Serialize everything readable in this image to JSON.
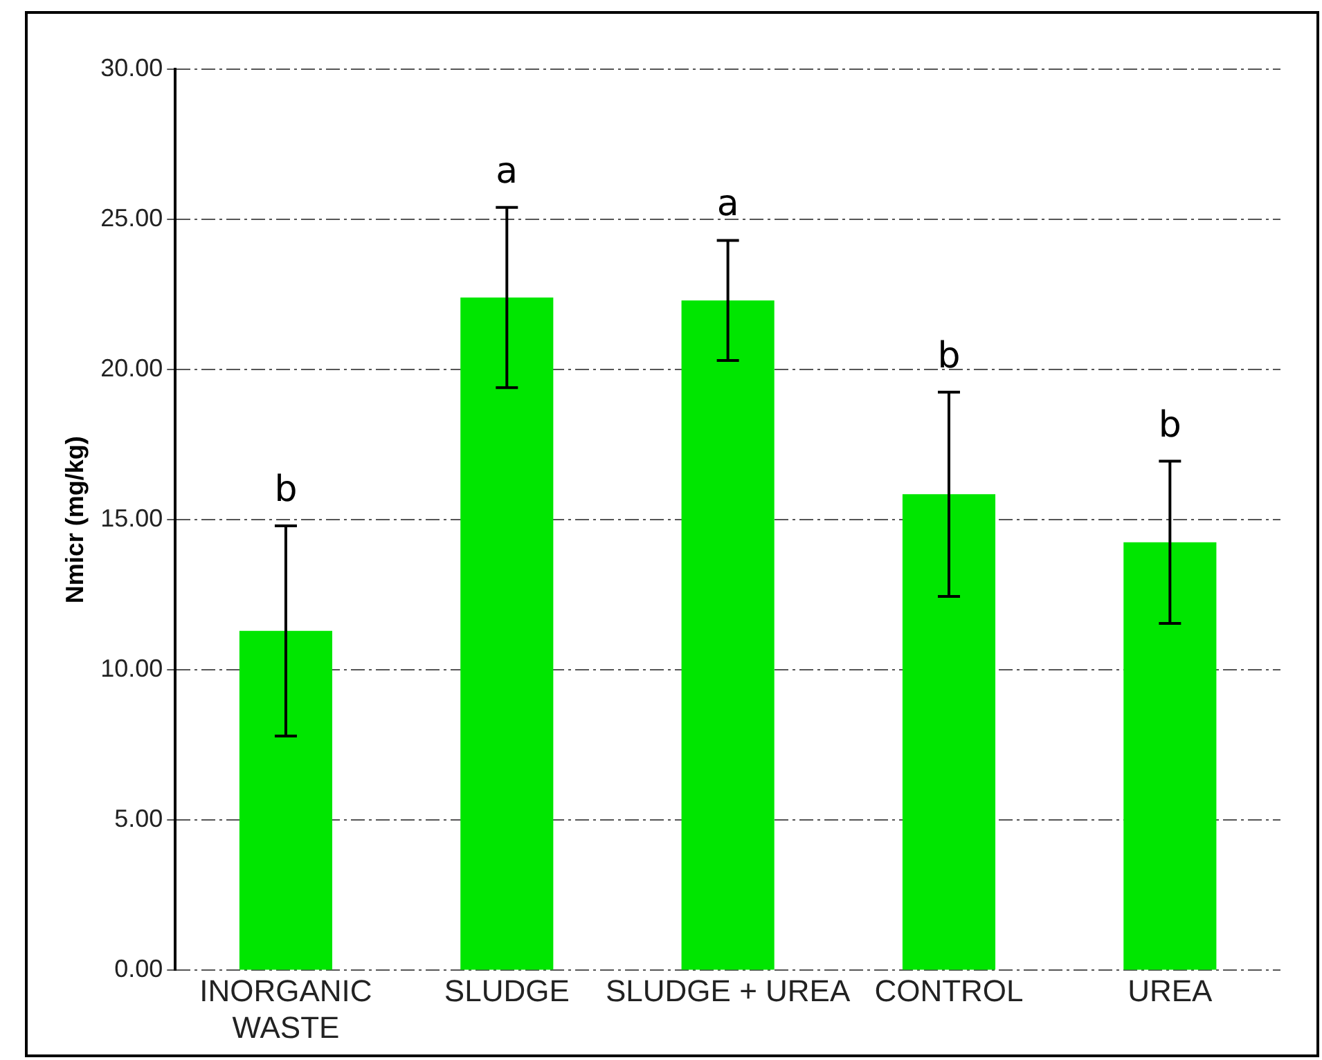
{
  "chart_data": {
    "type": "bar",
    "ylabel": "Nmicr (mg/kg)",
    "categories": [
      "INORGANIC WASTE",
      "SLUDGE",
      "SLUDGE + UREA",
      "CONTROL",
      "UREA"
    ],
    "values": [
      11.3,
      22.4,
      22.3,
      15.85,
      14.25
    ],
    "errors": [
      3.5,
      3.0,
      2.0,
      3.4,
      2.7
    ],
    "color": "#00e600",
    "ylim": [
      0,
      30
    ],
    "yticks": [
      {
        "value": 0,
        "label": "0.00"
      },
      {
        "value": 5,
        "label": "5.00"
      },
      {
        "value": 10,
        "label": "10.00"
      },
      {
        "value": 15,
        "label": "15.00"
      },
      {
        "value": 20,
        "label": "20.00"
      },
      {
        "value": 25,
        "label": "25.00"
      },
      {
        "value": 30,
        "label": "30.00"
      }
    ],
    "grid": "y",
    "annotations": [
      "b",
      "a",
      "a",
      "b",
      "b"
    ]
  }
}
